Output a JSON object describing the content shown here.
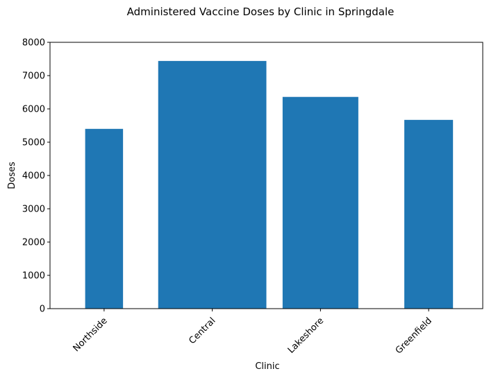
{
  "chart_data": {
    "type": "bar",
    "title": "Administered Vaccine Doses by Clinic in Springdale",
    "xlabel": "Clinic",
    "ylabel": "Doses",
    "categories": [
      "Northside",
      "Central",
      "Lakeshore",
      "Greenfield"
    ],
    "values": [
      5400,
      7440,
      6360,
      5670
    ],
    "bar_widths": [
      0.35,
      1.0,
      0.7,
      0.45
    ],
    "ylim": [
      0,
      8000
    ],
    "yticks": [
      0,
      1000,
      2000,
      3000,
      4000,
      5000,
      6000,
      7000,
      8000
    ],
    "bar_color": "#1f77b4",
    "grid": false,
    "legend": "none"
  }
}
